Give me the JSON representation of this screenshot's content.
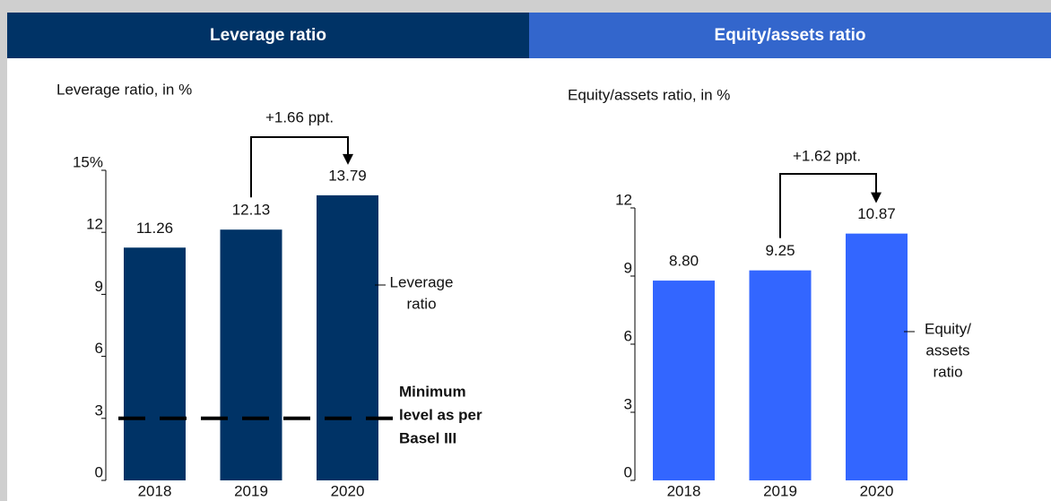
{
  "chart_data": [
    {
      "type": "bar",
      "title": "Leverage ratio",
      "subtitle": "Leverage ratio, in %",
      "categories": [
        "2018",
        "2019",
        "2020"
      ],
      "values": [
        11.26,
        12.13,
        13.79
      ],
      "value_labels": [
        "11.26",
        "12.13",
        "13.79"
      ],
      "color": "#003366",
      "header_color": "#003366",
      "ylim": [
        0,
        15
      ],
      "yticks": [
        0,
        3,
        6,
        9,
        12,
        {
          "value": 15,
          "label": "15%"
        }
      ],
      "annotation": "+1.66 ppt.",
      "series_label": [
        "Leverage",
        "ratio"
      ],
      "reference_line": {
        "value": 3,
        "label": [
          "Minimum",
          "level as per",
          "Basel III"
        ]
      }
    },
    {
      "type": "bar",
      "title": "Equity/assets ratio",
      "subtitle": "Equity/assets ratio, in %",
      "categories": [
        "2018",
        "2019",
        "2020"
      ],
      "values": [
        8.8,
        9.25,
        10.87
      ],
      "value_labels": [
        "8.80",
        "9.25",
        "10.87"
      ],
      "color": "#3366ff",
      "header_color": "#3366cc",
      "ylim": [
        0,
        12
      ],
      "yticks": [
        0,
        3,
        6,
        9,
        12
      ],
      "annotation": "+1.62 ppt.",
      "series_label": [
        "Equity/",
        "assets",
        "ratio"
      ]
    }
  ]
}
